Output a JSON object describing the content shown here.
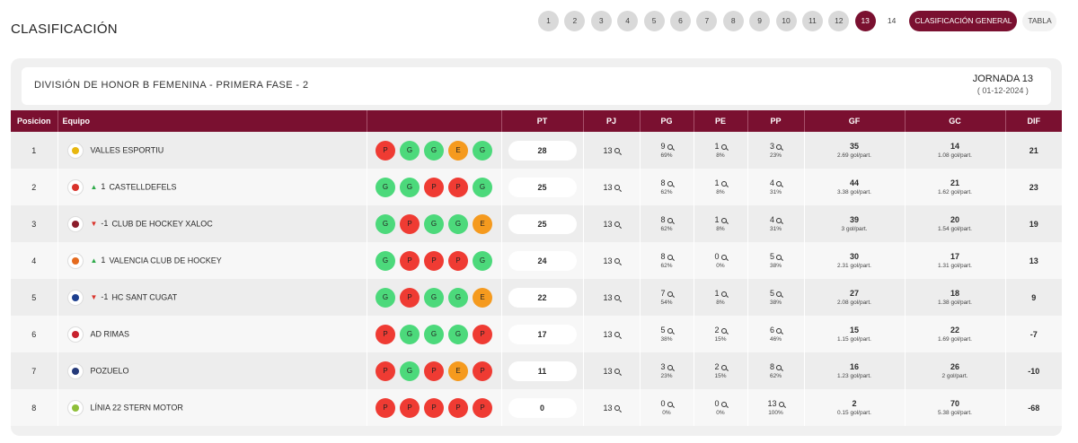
{
  "page": {
    "title": "CLASIFICACIÓN"
  },
  "nav": {
    "jornadas": [
      "1",
      "2",
      "3",
      "4",
      "5",
      "6",
      "7",
      "8",
      "9",
      "10",
      "11",
      "12",
      "13",
      "14"
    ],
    "active": "13",
    "general_label": "CLASIFICACIÓN GENERAL",
    "tabla_label": "TABLA"
  },
  "header": {
    "division": "DIVISIÓN DE HONOR B FEMENINA - PRIMERA FASE - 2",
    "jornada": "JORNADA 13",
    "date": "( 01-12-2024 )"
  },
  "columns": [
    "Posicion",
    "Equipo",
    "",
    "PT",
    "PJ",
    "PG",
    "PE",
    "PP",
    "GF",
    "GC",
    "DIF"
  ],
  "colors": {
    "primary": "#7a1030",
    "win": "#4cd97b",
    "loss": "#ef3b33",
    "draw": "#f59a1e"
  },
  "rows": [
    {
      "pos": "1",
      "trend": "",
      "trend_val": "",
      "team": "VALLES ESPORTIU",
      "logo": "#e8b70f",
      "form": [
        "P",
        "G",
        "G",
        "E",
        "G"
      ],
      "pt": "28",
      "pj": "13",
      "pg": "9",
      "pg_pct": "69%",
      "pe": "1",
      "pe_pct": "8%",
      "pp": "3",
      "pp_pct": "23%",
      "gf": "35",
      "gf_avg": "2.69 gol/part.",
      "gc": "14",
      "gc_avg": "1.08 gol/part.",
      "dif": "21"
    },
    {
      "pos": "2",
      "trend": "up",
      "trend_val": "1",
      "team": "CASTELLDEFELS",
      "logo": "#d9332b",
      "form": [
        "G",
        "G",
        "P",
        "P",
        "G"
      ],
      "pt": "25",
      "pj": "13",
      "pg": "8",
      "pg_pct": "62%",
      "pe": "1",
      "pe_pct": "8%",
      "pp": "4",
      "pp_pct": "31%",
      "gf": "44",
      "gf_avg": "3.38 gol/part.",
      "gc": "21",
      "gc_avg": "1.62 gol/part.",
      "dif": "23"
    },
    {
      "pos": "3",
      "trend": "down",
      "trend_val": "-1",
      "team": "CLUB DE HOCKEY XALOC",
      "logo": "#8b1c2a",
      "form": [
        "G",
        "P",
        "G",
        "G",
        "E"
      ],
      "pt": "25",
      "pj": "13",
      "pg": "8",
      "pg_pct": "62%",
      "pe": "1",
      "pe_pct": "8%",
      "pp": "4",
      "pp_pct": "31%",
      "gf": "39",
      "gf_avg": "3 gol/part.",
      "gc": "20",
      "gc_avg": "1.54 gol/part.",
      "dif": "19"
    },
    {
      "pos": "4",
      "trend": "up",
      "trend_val": "1",
      "team": "VALENCIA CLUB DE HOCKEY",
      "logo": "#e56a1e",
      "form": [
        "G",
        "P",
        "P",
        "P",
        "G"
      ],
      "pt": "24",
      "pj": "13",
      "pg": "8",
      "pg_pct": "62%",
      "pe": "0",
      "pe_pct": "0%",
      "pp": "5",
      "pp_pct": "38%",
      "gf": "30",
      "gf_avg": "2.31 gol/part.",
      "gc": "17",
      "gc_avg": "1.31 gol/part.",
      "dif": "13"
    },
    {
      "pos": "5",
      "trend": "down",
      "trend_val": "-1",
      "team": "HC SANT CUGAT",
      "logo": "#1d3f8f",
      "form": [
        "G",
        "P",
        "G",
        "G",
        "E"
      ],
      "pt": "22",
      "pj": "13",
      "pg": "7",
      "pg_pct": "54%",
      "pe": "1",
      "pe_pct": "8%",
      "pp": "5",
      "pp_pct": "38%",
      "gf": "27",
      "gf_avg": "2.08 gol/part.",
      "gc": "18",
      "gc_avg": "1.38 gol/part.",
      "dif": "9"
    },
    {
      "pos": "6",
      "trend": "",
      "trend_val": "",
      "team": "AD RIMAS",
      "logo": "#c8222e",
      "form": [
        "P",
        "G",
        "G",
        "G",
        "P"
      ],
      "pt": "17",
      "pj": "13",
      "pg": "5",
      "pg_pct": "38%",
      "pe": "2",
      "pe_pct": "15%",
      "pp": "6",
      "pp_pct": "46%",
      "gf": "15",
      "gf_avg": "1.15 gol/part.",
      "gc": "22",
      "gc_avg": "1.69 gol/part.",
      "dif": "-7"
    },
    {
      "pos": "7",
      "trend": "",
      "trend_val": "",
      "team": "POZUELO",
      "logo": "#253a7a",
      "form": [
        "P",
        "G",
        "P",
        "E",
        "P"
      ],
      "pt": "11",
      "pj": "13",
      "pg": "3",
      "pg_pct": "23%",
      "pe": "2",
      "pe_pct": "15%",
      "pp": "8",
      "pp_pct": "62%",
      "gf": "16",
      "gf_avg": "1.23 gol/part.",
      "gc": "26",
      "gc_avg": "2 gol/part.",
      "dif": "-10"
    },
    {
      "pos": "8",
      "trend": "",
      "trend_val": "",
      "team": "LÍNIA 22 STERN MOTOR",
      "logo": "#8fbf3a",
      "form": [
        "P",
        "P",
        "P",
        "P",
        "P"
      ],
      "pt": "0",
      "pj": "13",
      "pg": "0",
      "pg_pct": "0%",
      "pe": "0",
      "pe_pct": "0%",
      "pp": "13",
      "pp_pct": "100%",
      "gf": "2",
      "gf_avg": "0.15 gol/part.",
      "gc": "70",
      "gc_avg": "5.38 gol/part.",
      "dif": "-68"
    }
  ]
}
